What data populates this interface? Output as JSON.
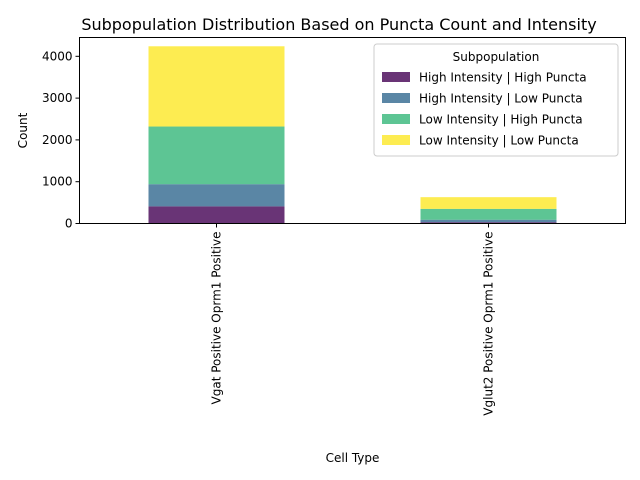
{
  "chart_data": {
    "type": "bar",
    "stacked": true,
    "title": "Subpopulation Distribution Based on Puncta Count and Intensity",
    "xlabel": "Cell Type",
    "ylabel": "Count",
    "categories": [
      "Vgat Positive Oprm1 Positive",
      "Vglut2 Positive Oprm1 Positive"
    ],
    "series": [
      {
        "name": "High Intensity | High Puncta",
        "color": "#440154",
        "values": [
          410,
          30
        ]
      },
      {
        "name": "High Intensity | Low Puncta",
        "color": "#31688e",
        "values": [
          530,
          60
        ]
      },
      {
        "name": "Low Intensity | High Puncta",
        "color": "#35b779",
        "values": [
          1380,
          260
        ]
      },
      {
        "name": "Low Intensity | Low Puncta",
        "color": "#fde725",
        "values": [
          1920,
          280
        ]
      }
    ],
    "bar_opacity": 0.8,
    "ylim": [
      0,
      4450
    ],
    "yticks": [
      0,
      1000,
      2000,
      3000,
      4000
    ],
    "legend": {
      "title": "Subpopulation",
      "placement": "upper right"
    },
    "grid": false
  }
}
